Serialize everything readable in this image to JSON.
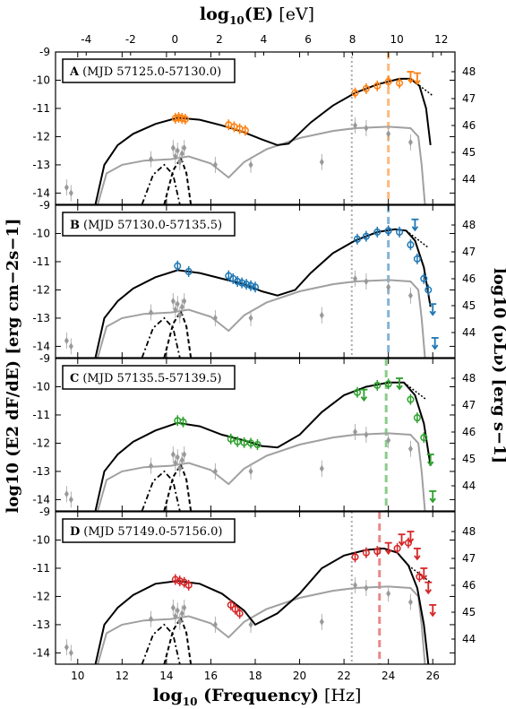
{
  "chart_data": {
    "type": "scatter",
    "xlabel_bold": "log",
    "xlabel_sub": "10",
    "xlabel_main": " (Frequency)",
    "xlabel_unit": " [Hz]",
    "toplabel_bold": "log",
    "toplabel_sub": "10",
    "toplabel_main": "(E)",
    "toplabel_unit": " [eV]",
    "ylabel_left": "log10 (E2 dF/dE) [erg cm−2s−1]",
    "ylabel_right": "log10 (νLν) [erg s−1]",
    "xlim": [
      9,
      27
    ],
    "x_ticks": [
      10,
      12,
      14,
      16,
      18,
      20,
      22,
      24,
      26
    ],
    "top_ticks": [
      -4,
      -2,
      0,
      2,
      4,
      6,
      8,
      10,
      12
    ],
    "ylim": [
      -14.4,
      -9
    ],
    "y_ticks": [
      -9,
      -10,
      -11,
      -12,
      -13,
      -14
    ],
    "right_ticks": [
      48,
      47,
      46,
      45,
      44
    ],
    "panels": [
      {
        "letter": "A",
        "label": "(MJD 57125.0-57130.0)",
        "color": "#ff7f0e",
        "vline_x": 24.0,
        "dotted_vline_x": 22.35,
        "model": [
          [
            10.8,
            -14.4
          ],
          [
            11.2,
            -13.0
          ],
          [
            11.8,
            -12.3
          ],
          [
            12.5,
            -11.9
          ],
          [
            13.5,
            -11.55
          ],
          [
            14.5,
            -11.33
          ],
          [
            15.5,
            -11.4
          ],
          [
            16.5,
            -11.6
          ],
          [
            17.5,
            -11.85
          ],
          [
            18.3,
            -12.1
          ],
          [
            19.0,
            -12.3
          ],
          [
            19.5,
            -12.25
          ],
          [
            20.5,
            -11.5
          ],
          [
            21.5,
            -10.9
          ],
          [
            22.5,
            -10.45
          ],
          [
            23.5,
            -10.15
          ],
          [
            24.5,
            -9.95
          ],
          [
            25.0,
            -9.95
          ],
          [
            25.4,
            -10.2
          ],
          [
            25.7,
            -11.0
          ],
          [
            25.9,
            -12.3
          ]
        ],
        "gray_model": [
          [
            10.9,
            -14.4
          ],
          [
            11.3,
            -13.3
          ],
          [
            12,
            -13.0
          ],
          [
            13,
            -12.85
          ],
          [
            14.2,
            -12.8
          ],
          [
            15,
            -12.7
          ],
          [
            16,
            -12.95
          ],
          [
            16.8,
            -13.45
          ],
          [
            17.5,
            -12.9
          ],
          [
            18.5,
            -12.45
          ],
          [
            20,
            -12.05
          ],
          [
            21.5,
            -11.8
          ],
          [
            22.5,
            -11.7
          ],
          [
            24,
            -11.65
          ],
          [
            25,
            -11.7
          ],
          [
            25.35,
            -12.0
          ],
          [
            25.5,
            -13.0
          ],
          [
            25.65,
            -14.4
          ]
        ],
        "points": [
          [
            14.4,
            -11.35
          ],
          [
            14.55,
            -11.32
          ],
          [
            14.7,
            -11.35
          ],
          [
            14.85,
            -11.38
          ],
          [
            16.8,
            -11.58
          ],
          [
            17.05,
            -11.65
          ],
          [
            17.3,
            -11.72
          ],
          [
            17.55,
            -11.78
          ],
          [
            22.5,
            -10.45
          ],
          [
            23.0,
            -10.3
          ],
          [
            23.5,
            -10.2
          ],
          [
            24.0,
            -10.05
          ],
          [
            24.5,
            -10.1
          ]
        ],
        "upper_limits": [
          [
            25.0,
            -9.7
          ],
          [
            25.3,
            -9.75
          ]
        ]
      },
      {
        "letter": "B",
        "label": "(MJD 57130.0-57135.5)",
        "color": "#1f77b4",
        "vline_x": 24.0,
        "dotted_vline_x": 22.35,
        "model": [
          [
            10.8,
            -14.4
          ],
          [
            11.2,
            -13.0
          ],
          [
            11.8,
            -12.4
          ],
          [
            12.5,
            -11.95
          ],
          [
            13.5,
            -11.55
          ],
          [
            14.5,
            -11.3
          ],
          [
            15.5,
            -11.4
          ],
          [
            16.5,
            -11.6
          ],
          [
            17.5,
            -11.8
          ],
          [
            18.3,
            -12.05
          ],
          [
            19.0,
            -12.2
          ],
          [
            19.8,
            -12.0
          ],
          [
            20.5,
            -11.4
          ],
          [
            21.5,
            -10.7
          ],
          [
            22.5,
            -10.25
          ],
          [
            23.5,
            -9.95
          ],
          [
            24.3,
            -9.85
          ],
          [
            24.8,
            -9.9
          ],
          [
            25.2,
            -10.25
          ],
          [
            25.6,
            -11.2
          ],
          [
            25.9,
            -12.6
          ]
        ],
        "gray_model": [
          [
            10.9,
            -14.4
          ],
          [
            11.3,
            -13.3
          ],
          [
            12,
            -13.0
          ],
          [
            13,
            -12.85
          ],
          [
            14.2,
            -12.8
          ],
          [
            15,
            -12.7
          ],
          [
            16,
            -12.95
          ],
          [
            16.8,
            -13.45
          ],
          [
            17.5,
            -12.9
          ],
          [
            18.5,
            -12.45
          ],
          [
            20,
            -12.05
          ],
          [
            21.5,
            -11.8
          ],
          [
            22.5,
            -11.7
          ],
          [
            24,
            -11.65
          ],
          [
            25,
            -11.7
          ],
          [
            25.35,
            -12.0
          ],
          [
            25.5,
            -13.0
          ],
          [
            25.65,
            -14.4
          ]
        ],
        "points": [
          [
            14.5,
            -11.15
          ],
          [
            15.0,
            -11.35
          ],
          [
            16.8,
            -11.5
          ],
          [
            17.0,
            -11.6
          ],
          [
            17.2,
            -11.7
          ],
          [
            17.4,
            -11.75
          ],
          [
            17.6,
            -11.8
          ],
          [
            17.8,
            -11.85
          ],
          [
            18.0,
            -11.9
          ],
          [
            22.6,
            -10.2
          ],
          [
            23.0,
            -10.1
          ],
          [
            23.5,
            -9.95
          ],
          [
            24.0,
            -9.9
          ],
          [
            24.5,
            -9.95
          ],
          [
            25.0,
            -10.4
          ],
          [
            25.3,
            -10.9
          ],
          [
            25.6,
            -11.6
          ],
          [
            25.8,
            -12.0
          ]
        ],
        "upper_limits": [
          [
            25.2,
            -9.5
          ],
          [
            26.0,
            -12.5
          ],
          [
            26.1,
            -13.7
          ]
        ]
      },
      {
        "letter": "C",
        "label": "(MJD 57135.5-57139.5)",
        "color": "#2ca02c",
        "vline_x": 23.9,
        "dotted_vline_x": null,
        "model": [
          [
            10.8,
            -14.4
          ],
          [
            11.2,
            -13.0
          ],
          [
            11.8,
            -12.4
          ],
          [
            12.5,
            -11.95
          ],
          [
            13.5,
            -11.55
          ],
          [
            14.5,
            -11.28
          ],
          [
            15.5,
            -11.4
          ],
          [
            16.5,
            -11.7
          ],
          [
            17.5,
            -11.9
          ],
          [
            18.3,
            -12.1
          ],
          [
            19.0,
            -12.15
          ],
          [
            20.0,
            -11.7
          ],
          [
            21.0,
            -10.9
          ],
          [
            22.0,
            -10.3
          ],
          [
            23.0,
            -10.0
          ],
          [
            24.0,
            -9.85
          ],
          [
            24.7,
            -9.85
          ],
          [
            25.2,
            -10.3
          ],
          [
            25.6,
            -11.3
          ],
          [
            25.9,
            -12.8
          ]
        ],
        "gray_model": [
          [
            10.9,
            -14.4
          ],
          [
            11.3,
            -13.3
          ],
          [
            12,
            -13.0
          ],
          [
            13,
            -12.85
          ],
          [
            14.2,
            -12.8
          ],
          [
            15,
            -12.7
          ],
          [
            16,
            -12.95
          ],
          [
            16.8,
            -13.45
          ],
          [
            17.5,
            -12.9
          ],
          [
            18.5,
            -12.45
          ],
          [
            20,
            -12.05
          ],
          [
            21.5,
            -11.8
          ],
          [
            22.5,
            -11.7
          ],
          [
            24,
            -11.65
          ],
          [
            25,
            -11.7
          ],
          [
            25.35,
            -12.0
          ],
          [
            25.5,
            -13.0
          ],
          [
            25.65,
            -14.4
          ]
        ],
        "points": [
          [
            14.5,
            -11.2
          ],
          [
            14.75,
            -11.25
          ],
          [
            16.9,
            -11.85
          ],
          [
            17.2,
            -11.95
          ],
          [
            17.5,
            -11.98
          ],
          [
            17.8,
            -12.0
          ],
          [
            18.1,
            -12.05
          ],
          [
            22.6,
            -10.2
          ],
          [
            23.5,
            -9.95
          ],
          [
            24.0,
            -9.9
          ],
          [
            25.0,
            -10.45
          ],
          [
            25.3,
            -11.1
          ],
          [
            25.6,
            -11.8
          ]
        ],
        "upper_limits": [
          [
            22.9,
            -10.1
          ],
          [
            24.5,
            -9.7
          ],
          [
            25.9,
            -12.4
          ],
          [
            26.0,
            -13.7
          ]
        ]
      },
      {
        "letter": "D",
        "label": "(MJD 57149.0-57156.0)",
        "color": "#d62728",
        "vline_x": 23.6,
        "dotted_vline_x": 22.35,
        "model": [
          [
            10.8,
            -14.4
          ],
          [
            11.2,
            -13.0
          ],
          [
            11.8,
            -12.4
          ],
          [
            12.5,
            -11.95
          ],
          [
            13.5,
            -11.55
          ],
          [
            14.5,
            -11.45
          ],
          [
            15.5,
            -11.55
          ],
          [
            16.5,
            -11.9
          ],
          [
            17.5,
            -12.5
          ],
          [
            18.0,
            -13.0
          ],
          [
            19.0,
            -12.6
          ],
          [
            20.0,
            -11.9
          ],
          [
            21.0,
            -11.0
          ],
          [
            22.0,
            -10.55
          ],
          [
            23.0,
            -10.35
          ],
          [
            23.8,
            -10.3
          ],
          [
            24.4,
            -10.45
          ],
          [
            24.9,
            -10.9
          ],
          [
            25.3,
            -11.7
          ],
          [
            25.6,
            -13.0
          ],
          [
            25.8,
            -14.4
          ]
        ],
        "gray_model": [
          [
            10.9,
            -14.4
          ],
          [
            11.3,
            -13.3
          ],
          [
            12,
            -13.0
          ],
          [
            13,
            -12.85
          ],
          [
            14.2,
            -12.8
          ],
          [
            15,
            -12.7
          ],
          [
            16,
            -12.95
          ],
          [
            16.8,
            -13.45
          ],
          [
            17.5,
            -12.9
          ],
          [
            18.5,
            -12.45
          ],
          [
            20,
            -12.05
          ],
          [
            21.5,
            -11.8
          ],
          [
            22.5,
            -11.7
          ],
          [
            24,
            -11.65
          ],
          [
            25,
            -11.7
          ],
          [
            25.35,
            -12.0
          ],
          [
            25.5,
            -13.0
          ],
          [
            25.65,
            -14.4
          ]
        ],
        "points": [
          [
            14.4,
            -11.4
          ],
          [
            14.6,
            -11.45
          ],
          [
            14.8,
            -11.5
          ],
          [
            15.0,
            -11.6
          ],
          [
            16.9,
            -12.3
          ],
          [
            17.1,
            -12.45
          ],
          [
            17.3,
            -12.6
          ],
          [
            22.5,
            -10.6
          ],
          [
            23.0,
            -10.45
          ],
          [
            23.5,
            -10.4
          ],
          [
            24.4,
            -10.3
          ],
          [
            24.9,
            -10.1
          ],
          [
            25.4,
            -11.3
          ]
        ],
        "upper_limits": [
          [
            24.0,
            -10.1
          ],
          [
            24.6,
            -9.8
          ],
          [
            25.0,
            -9.7
          ],
          [
            25.3,
            -10.3
          ],
          [
            25.6,
            -11.0
          ],
          [
            25.8,
            -11.5
          ],
          [
            26.0,
            -12.3
          ]
        ]
      }
    ],
    "gray_points": [
      [
        9.5,
        -13.8
      ],
      [
        9.7,
        -14.0
      ],
      [
        13.3,
        -12.8
      ],
      [
        14.3,
        -12.4
      ],
      [
        14.4,
        -12.7
      ],
      [
        14.5,
        -12.5
      ],
      [
        14.6,
        -12.9
      ],
      [
        14.7,
        -12.6
      ],
      [
        14.8,
        -12.4
      ],
      [
        16.2,
        -13.0
      ],
      [
        17.8,
        -13.0
      ],
      [
        21.0,
        -12.9
      ],
      [
        22.5,
        -11.6
      ],
      [
        23.0,
        -11.7
      ],
      [
        24.0,
        -11.9
      ],
      [
        25.0,
        -12.2
      ]
    ]
  }
}
